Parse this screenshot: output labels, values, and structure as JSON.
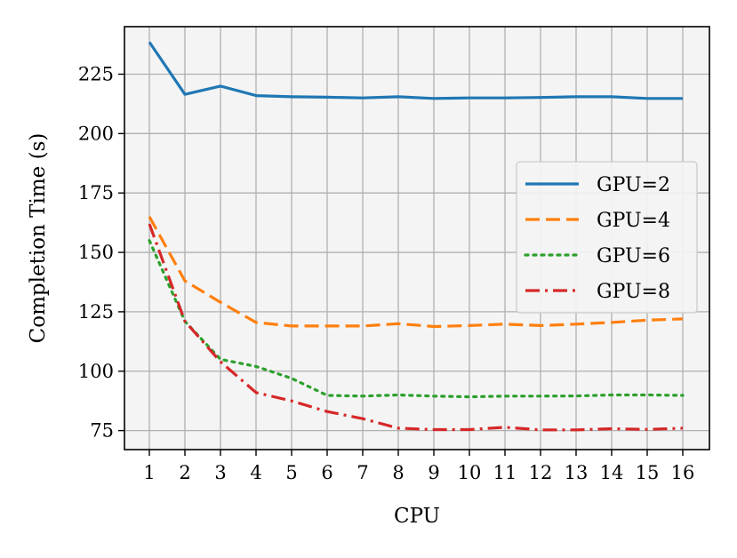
{
  "chart_data": {
    "type": "line",
    "title": "",
    "xlabel": "CPU",
    "ylabel": "Completion Time (s)",
    "x": [
      1,
      2,
      3,
      4,
      5,
      6,
      7,
      8,
      9,
      10,
      11,
      12,
      13,
      14,
      15,
      16
    ],
    "xticks": [
      "1",
      "2",
      "3",
      "4",
      "5",
      "6",
      "7",
      "8",
      "9",
      "10",
      "11",
      "12",
      "13",
      "14",
      "15",
      "16"
    ],
    "yticks": [
      75,
      100,
      125,
      150,
      175,
      200,
      225
    ],
    "xlim": [
      0.3,
      16.75
    ],
    "ylim": [
      67,
      245
    ],
    "grid": true,
    "legend_position": "right",
    "series": [
      {
        "name": "GPU=2",
        "color": "#1f77b4",
        "dash": "solid",
        "values": [
          238.5,
          216.5,
          220,
          216,
          215.5,
          215.3,
          215,
          215.5,
          214.8,
          215,
          215,
          215.2,
          215.5,
          215.5,
          214.8,
          214.8
        ]
      },
      {
        "name": "GPU=4",
        "color": "#ff7f0e",
        "dash": "dashed",
        "values": [
          165,
          138,
          129,
          120.5,
          119,
          119,
          119,
          120,
          118.8,
          119.2,
          119.8,
          119.2,
          119.8,
          120.5,
          121.5,
          122
        ]
      },
      {
        "name": "GPU=6",
        "color": "#2ca02c",
        "dash": "dotted",
        "values": [
          155,
          121,
          105,
          102,
          97,
          89.8,
          89.5,
          90,
          89.5,
          89.2,
          89.5,
          89.5,
          89.6,
          90,
          90,
          89.8
        ]
      },
      {
        "name": "GPU=8",
        "color": "#d62728",
        "dash": "dashdot",
        "values": [
          162,
          121,
          104,
          91,
          87.5,
          83,
          80,
          76,
          75.4,
          75.4,
          76.4,
          75.3,
          75.3,
          75.8,
          75.5,
          76
        ]
      }
    ]
  }
}
